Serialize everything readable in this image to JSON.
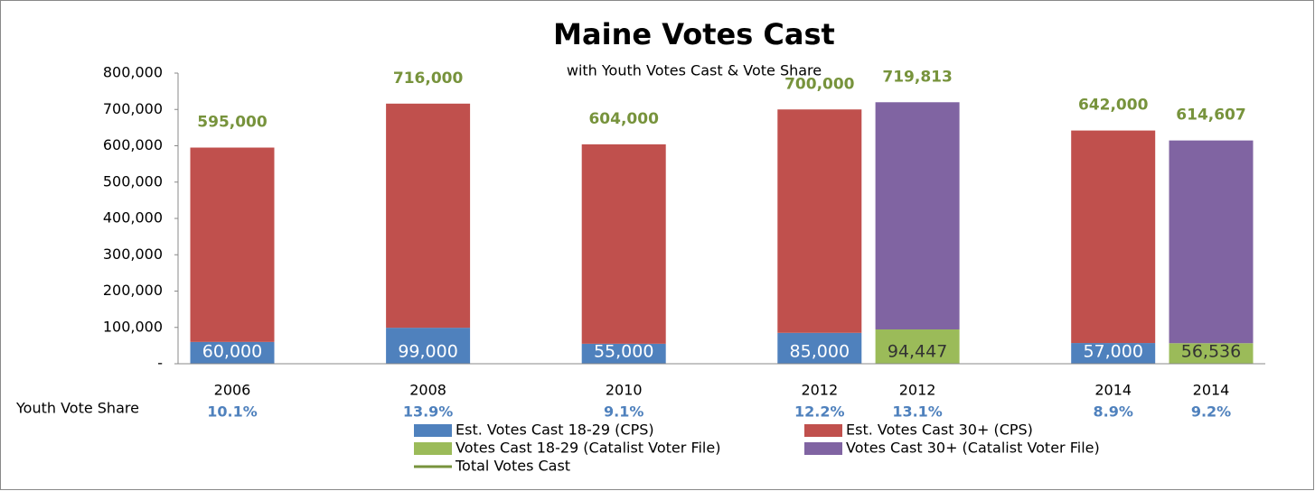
{
  "chart_data": {
    "type": "bar",
    "stacked": true,
    "title": "Maine Votes Cast",
    "subtitle": "with Youth Votes Cast & Vote Share",
    "categories": [
      "2006",
      null,
      "2008",
      null,
      "2010",
      null,
      "2012",
      "2012",
      null,
      "2014",
      "2014"
    ],
    "ylim": [
      0,
      800000
    ],
    "yticks": [
      {
        "value": 0,
        "label": "-"
      },
      {
        "value": 100000,
        "label": "100,000"
      },
      {
        "value": 200000,
        "label": "200,000"
      },
      {
        "value": 300000,
        "label": "300,000"
      },
      {
        "value": 400000,
        "label": "400,000"
      },
      {
        "value": 500000,
        "label": "500,000"
      },
      {
        "value": 600000,
        "label": "600,000"
      },
      {
        "value": 700000,
        "label": "700,000"
      },
      {
        "value": 800000,
        "label": "800,000"
      }
    ],
    "grid": false,
    "series": [
      {
        "name": "Est. Votes Cast 18-29 (CPS)",
        "color": "#4f81bd",
        "label_color": "#ffffff",
        "values": [
          60000,
          null,
          99000,
          null,
          55000,
          null,
          85000,
          null,
          null,
          57000,
          null
        ],
        "value_labels": [
          "60,000",
          null,
          "99,000",
          null,
          "55,000",
          null,
          "85,000",
          null,
          null,
          "57,000",
          null
        ]
      },
      {
        "name": "Est. Votes Cast 30+ (CPS)",
        "color": "#c0504d",
        "values": [
          535000,
          null,
          617000,
          null,
          549000,
          null,
          615000,
          null,
          null,
          585000,
          null
        ]
      },
      {
        "name": "Votes Cast 18-29 (Catalist Voter File)",
        "color": "#9bbb59",
        "label_color": "#333333",
        "values": [
          null,
          null,
          null,
          null,
          null,
          null,
          null,
          94447,
          null,
          null,
          56536
        ],
        "value_labels": [
          null,
          null,
          null,
          null,
          null,
          null,
          null,
          "94,447",
          null,
          null,
          "56,536"
        ]
      },
      {
        "name": "Votes Cast 30+ (Catalist Voter File)",
        "color": "#8064a2",
        "values": [
          null,
          null,
          null,
          null,
          null,
          null,
          null,
          625366,
          null,
          null,
          558071
        ]
      },
      {
        "name": "Total Votes Cast",
        "type": "line",
        "color": "#77933c",
        "values": [
          595000,
          null,
          716000,
          null,
          604000,
          null,
          700000,
          719813,
          null,
          642000,
          614607
        ],
        "value_labels": [
          "595,000",
          null,
          "716,000",
          null,
          "604,000",
          null,
          "700,000",
          "719,813",
          null,
          "642,000",
          "614,607"
        ]
      }
    ],
    "row_label": "Youth Vote Share",
    "youth_vote_share": {
      "color": "#4f81bd",
      "values": [
        10.1,
        null,
        13.9,
        null,
        9.1,
        null,
        12.2,
        13.1,
        null,
        8.9,
        9.2
      ],
      "value_labels": [
        "10.1%",
        null,
        "13.9%",
        null,
        "9.1%",
        null,
        "12.2%",
        "13.1%",
        null,
        "8.9%",
        "9.2%"
      ]
    }
  }
}
